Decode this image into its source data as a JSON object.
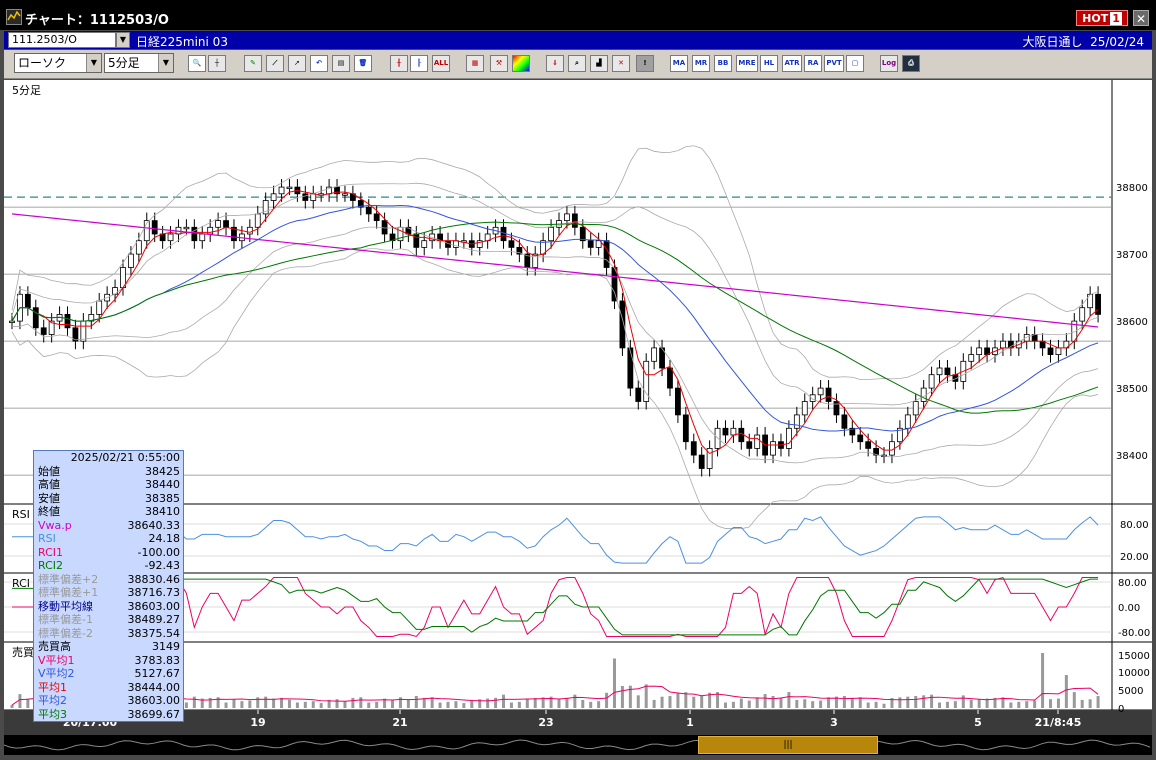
{
  "window": {
    "title": "チャート：1112503/O",
    "hot_label": "HOT",
    "hot_num": "1",
    "close": "✕"
  },
  "symbol": {
    "code": "111.2503/O",
    "name": "日経225mini 03",
    "session": "大阪日通し",
    "date": "25/02/24"
  },
  "toolbar": {
    "chart_type": "ローソク",
    "interval": "5分足",
    "buttons": [
      "zoom",
      "cursor",
      "draw",
      "trend",
      "pointer",
      "undo",
      "memo",
      "trash",
      "candle",
      "bar",
      "ALL",
      "indicator",
      "settings",
      "color",
      "down",
      "search",
      "chart",
      "cross",
      "grey",
      "MA",
      "MR",
      "BB",
      "MRE",
      "HL",
      "ATR",
      "RA",
      "PVT",
      "IND",
      "Log",
      "print"
    ],
    "labels": {
      "ALL": "ALL",
      "MA": "MA",
      "MR": "MR",
      "BB": "BB",
      "MRE": "MRE",
      "HL": "HL",
      "ATR": "ATR",
      "RA": "RA",
      "PVT": "PVT",
      "Log": "Log"
    }
  },
  "main_panel": {
    "label": "5分足",
    "y_ticks": [
      "38800",
      "38700",
      "38600",
      "38500",
      "38400"
    ],
    "y_range": [
      38330,
      38930
    ]
  },
  "info_panel": {
    "datetime": "2025/02/21 0:55:00",
    "rows": [
      {
        "label": "始値",
        "value": "38425",
        "color": "#000000"
      },
      {
        "label": "高値",
        "value": "38440",
        "color": "#000000"
      },
      {
        "label": "安値",
        "value": "38385",
        "color": "#000000"
      },
      {
        "label": "終値",
        "value": "38410",
        "color": "#000000"
      },
      {
        "label": "Vwa.p",
        "value": "38640.33",
        "color": "#cc00cc"
      },
      {
        "label": "RSI",
        "value": "24.18",
        "color": "#4a90e2"
      },
      {
        "label": "RCI1",
        "value": "-100.00",
        "color": "#ee0066"
      },
      {
        "label": "RCI2",
        "value": "-92.43",
        "color": "#007700"
      },
      {
        "label": "標準偏差+2",
        "value": "38830.46",
        "color": "#999999"
      },
      {
        "label": "標準偏差+1",
        "value": "38716.73",
        "color": "#999999"
      },
      {
        "label": "移動平均線",
        "value": "38603.00",
        "color": "#000088"
      },
      {
        "label": "標準偏差-1",
        "value": "38489.27",
        "color": "#999999"
      },
      {
        "label": "標準偏差-2",
        "value": "38375.54",
        "color": "#999999"
      },
      {
        "label": "売買高",
        "value": "3149",
        "color": "#000000"
      },
      {
        "label": "V平均1",
        "value": "3783.83",
        "color": "#ee0066"
      },
      {
        "label": "V平均2",
        "value": "5127.67",
        "color": "#3355dd"
      },
      {
        "label": "平均1",
        "value": "38444.00",
        "color": "#ee0000"
      },
      {
        "label": "平均2",
        "value": "38603.00",
        "color": "#3355dd"
      },
      {
        "label": "平均3",
        "value": "38699.67",
        "color": "#007700"
      }
    ]
  },
  "rsi_panel": {
    "label": "RSI",
    "ticks": [
      "80.00",
      "20.00"
    ]
  },
  "rci_panel": {
    "label": "RCI",
    "ticks": [
      "80.00",
      "0.00",
      "-80.00"
    ]
  },
  "volume_panel": {
    "label": "売買高(6,12,24)",
    "ticks": [
      "15000",
      "10000",
      "5000",
      "0"
    ]
  },
  "x_axis": {
    "labels": [
      "20/17:00",
      "19",
      "21",
      "23",
      "1",
      "3",
      "5",
      "21/8:45"
    ]
  },
  "scrollbar": {
    "thumb_grip": "|||"
  },
  "chart_data": {
    "type": "candlestick",
    "title": "",
    "xlabel": "",
    "ylabel": "",
    "ylim": [
      38330,
      38930
    ],
    "closes": [
      38600,
      38640,
      38620,
      38590,
      38580,
      38600,
      38610,
      38590,
      38570,
      38600,
      38610,
      38630,
      38640,
      38650,
      38680,
      38700,
      38720,
      38750,
      38730,
      38720,
      38730,
      38740,
      38740,
      38720,
      38730,
      38740,
      38750,
      38740,
      38720,
      38730,
      38740,
      38760,
      38780,
      38790,
      38800,
      38800,
      38790,
      38780,
      38790,
      38790,
      38800,
      38790,
      38790,
      38780,
      38770,
      38760,
      38750,
      38730,
      38720,
      38740,
      38730,
      38710,
      38720,
      38730,
      38720,
      38710,
      38720,
      38720,
      38710,
      38720,
      38730,
      38740,
      38720,
      38710,
      38700,
      38680,
      38700,
      38720,
      38740,
      38750,
      38760,
      38740,
      38720,
      38710,
      38720,
      38680,
      38630,
      38560,
      38500,
      38480,
      38540,
      38560,
      38530,
      38500,
      38460,
      38420,
      38400,
      38380,
      38410,
      38440,
      38430,
      38440,
      38420,
      38410,
      38430,
      38400,
      38420,
      38410,
      38440,
      38460,
      38480,
      38490,
      38500,
      38480,
      38460,
      38440,
      38430,
      38420,
      38410,
      38400,
      38400,
      38420,
      38440,
      38460,
      38480,
      38500,
      38520,
      38530,
      38520,
      38510,
      38540,
      38550,
      38560,
      38550,
      38560,
      38570,
      38560,
      38570,
      38580,
      38570,
      38560,
      38550,
      38560,
      38570,
      38600,
      38620,
      38640,
      38610
    ],
    "series": [
      {
        "name": "平均1",
        "color": "#ee0000"
      },
      {
        "name": "平均2",
        "color": "#3355dd"
      },
      {
        "name": "平均3",
        "color": "#007700"
      },
      {
        "name": "Vwa.p",
        "color": "#cc00cc"
      }
    ],
    "grid": true
  }
}
